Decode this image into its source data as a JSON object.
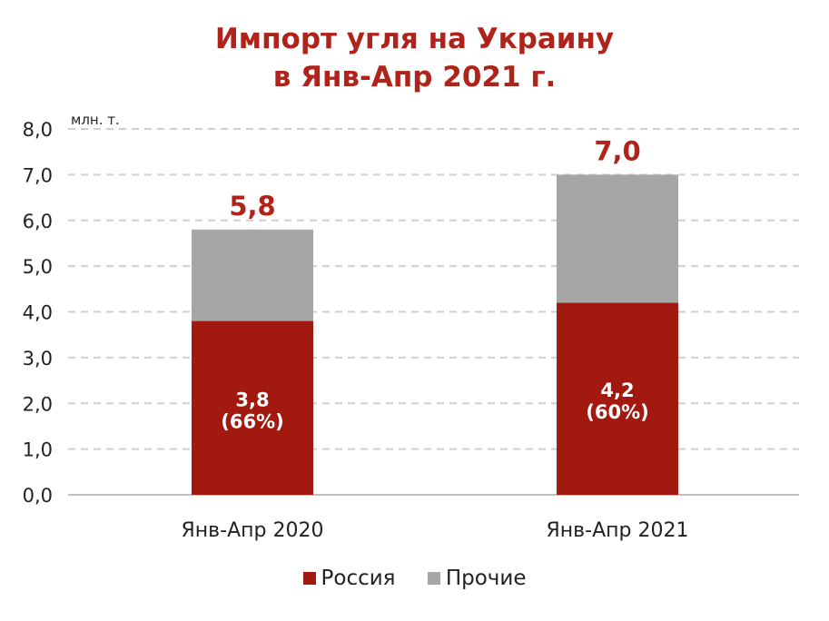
{
  "chart_data": {
    "type": "bar",
    "stacked": true,
    "title": [
      "Импорт угля на Украину",
      "в Янв-Апр 2021 г."
    ],
    "unit_label": "млн. т.",
    "categories": [
      "Янв-Апр 2020",
      "Янв-Апр 2021"
    ],
    "series": [
      {
        "name": "Россия",
        "values": [
          3.8,
          4.2
        ],
        "color": "#A2190F",
        "labels": [
          [
            "3,8",
            "(66%)"
          ],
          [
            "4,2",
            "(60%)"
          ]
        ]
      },
      {
        "name": "Прочие",
        "values": [
          2.0,
          2.8
        ],
        "color": "#A6A6A6"
      }
    ],
    "totals": [
      "5,8",
      "7,0"
    ],
    "ylim": [
      0,
      8
    ],
    "yticks": [
      "0,0",
      "1,0",
      "2,0",
      "3,0",
      "4,0",
      "5,0",
      "6,0",
      "7,0",
      "8,0"
    ],
    "grid": true,
    "legend": "bottom"
  }
}
